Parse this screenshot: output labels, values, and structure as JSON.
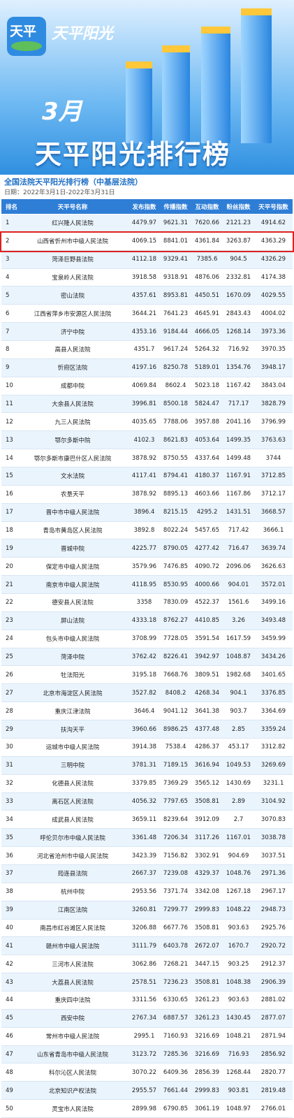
{
  "banner": {
    "logo": "天平",
    "brand": "天平阳光",
    "month": "3月",
    "title": "天平阳光排行榜"
  },
  "header": {
    "title": "全国法院天平阳光排行榜（中基层法院）",
    "date": "日期：2022年3月1日-2022年3月31日"
  },
  "table": {
    "columns": [
      "排名",
      "天平号名称",
      "发布指数",
      "传播指数",
      "互动指数",
      "粉丝指数",
      "天平号指数"
    ],
    "rows": [
      [
        1,
        "红兴隆人民法院",
        4479.97,
        9621.31,
        7620.66,
        2121.23,
        4914.62
      ],
      [
        2,
        "山西省忻州市中级人民法院",
        4069.15,
        8841.01,
        4361.84,
        3263.87,
        4363.29
      ],
      [
        3,
        "菏泽巨野县法院",
        4112.18,
        9329.41,
        7385.6,
        904.5,
        4326.29
      ],
      [
        4,
        "宝泉岭人民法院",
        3918.58,
        9318.91,
        4876.06,
        2332.81,
        4174.38
      ],
      [
        5,
        "密山法院",
        4357.61,
        8953.81,
        4450.51,
        1670.09,
        4029.55
      ],
      [
        6,
        "江西省萍乡市安源区人民法院",
        3644.21,
        7641.23,
        4645.91,
        2843.43,
        4004.02
      ],
      [
        7,
        "济宁中院",
        4353.16,
        9184.44,
        4666.05,
        1268.14,
        3973.36
      ],
      [
        8,
        "高县人民法院",
        4351.7,
        9617.24,
        5264.32,
        716.92,
        3970.35
      ],
      [
        9,
        "忻府区法院",
        4197.16,
        8250.78,
        5189.01,
        1354.76,
        3948.17
      ],
      [
        10,
        "成都中院",
        4069.84,
        8602.4,
        5023.18,
        1167.42,
        3843.04
      ],
      [
        11,
        "大余县人民法院",
        3996.81,
        8500.18,
        5824.47,
        717.17,
        3828.79
      ],
      [
        12,
        "九三人民法院",
        4035.65,
        7788.06,
        3957.88,
        2041.16,
        3796.99
      ],
      [
        13,
        "鄂尔多斯中院",
        4102.3,
        8621.83,
        4053.64,
        1499.35,
        3763.63
      ],
      [
        14,
        "鄂尔多斯市康巴什区人民法院",
        3878.92,
        8750.55,
        4337.64,
        1499.48,
        3744
      ],
      [
        15,
        "文水法院",
        4117.41,
        8794.41,
        4180.37,
        1167.91,
        3712.85
      ],
      [
        16,
        "农垦天平",
        3878.92,
        8895.13,
        4603.66,
        1167.86,
        3712.17
      ],
      [
        17,
        "晋中市中级人民法院",
        3896.4,
        8215.15,
        4295.2,
        1431.51,
        3668.57
      ],
      [
        18,
        "青岛市黄岛区人民法院",
        3892.8,
        8022.24,
        5457.65,
        717.42,
        3666.1
      ],
      [
        19,
        "晋城中院",
        4225.77,
        8790.05,
        4277.42,
        716.47,
        3639.74
      ],
      [
        20,
        "保定市中级人民法院",
        3579.96,
        7476.85,
        4090.72,
        2096.06,
        3626.63
      ],
      [
        21,
        "南京市中级人民法院",
        4118.95,
        8530.95,
        4000.66,
        904.01,
        3572.01
      ],
      [
        22,
        "德安县人民法院",
        3358,
        7830.09,
        4522.37,
        1561.6,
        3499.16
      ],
      [
        23,
        "屏山法院",
        4333.18,
        8762.27,
        4410.85,
        3.26,
        3493.48
      ],
      [
        24,
        "包头市中级人民法院",
        3708.99,
        7728.05,
        3591.54,
        1617.59,
        3459.99
      ],
      [
        25,
        "菏泽中院",
        3762.42,
        8226.41,
        3942.97,
        1048.87,
        3434.26
      ],
      [
        26,
        "牡法阳光",
        3195.18,
        7668.76,
        3809.51,
        1982.68,
        3401.65
      ],
      [
        27,
        "北京市海淀区人民法院",
        3527.82,
        8408.2,
        4268.34,
        904.1,
        3376.85
      ],
      [
        28,
        "重庆江津法院",
        3646.4,
        9041.12,
        3641.38,
        903.7,
        3364.69
      ],
      [
        29,
        "扶沟天平",
        3960.66,
        8986.25,
        4377.48,
        2.85,
        3359.24
      ],
      [
        30,
        "运城市中级人民法院",
        3914.38,
        7538.4,
        4286.37,
        453.17,
        3312.82
      ],
      [
        31,
        "三明中院",
        3781.31,
        7189.15,
        3616.94,
        1049.53,
        3269.69
      ],
      [
        32,
        "化德县人民法院",
        3379.85,
        7369.29,
        3565.12,
        1430.69,
        3231.1
      ],
      [
        33,
        "离石区人民法院",
        4056.32,
        7797.65,
        3508.81,
        2.89,
        3104.92
      ],
      [
        34,
        "成武县人民法院",
        3659.11,
        8239.64,
        3912.09,
        2.7,
        3070.83
      ],
      [
        35,
        "呼伦贝尔市中级人民法院",
        3361.48,
        7206.34,
        3117.26,
        1167.01,
        3038.78
      ],
      [
        36,
        "河北省沧州市中级人民法院",
        3423.39,
        7156.82,
        3302.91,
        904.69,
        3037.51
      ],
      [
        37,
        "筠连县法院",
        2667.37,
        7239.08,
        4329.37,
        1048.76,
        2971.36
      ],
      [
        38,
        "杭州中院",
        2953.56,
        7371.74,
        3342.08,
        1267.18,
        2967.17
      ],
      [
        39,
        "江南区法院",
        3260.81,
        7299.77,
        2999.83,
        1048.22,
        2948.73
      ],
      [
        40,
        "南昌市红谷滩区人民法院",
        3206.88,
        6677.76,
        3508.81,
        903.63,
        2925.76
      ],
      [
        41,
        "赣州市中级人民法院",
        3111.79,
        6403.78,
        2672.07,
        1670.7,
        2920.72
      ],
      [
        42,
        "三河市人民法院",
        3062.86,
        7268.21,
        3447.15,
        903.25,
        2912.37
      ],
      [
        43,
        "大荔县人民法院",
        2578.51,
        7236.23,
        3508.81,
        1048.38,
        2906.39
      ],
      [
        44,
        "重庆四中法院",
        3311.56,
        6330.65,
        3261.23,
        903.63,
        2881.02
      ],
      [
        45,
        "西安中院",
        2767.34,
        6887.57,
        3261.23,
        1430.45,
        2877.07
      ],
      [
        46,
        "常州市中级人民法院",
        2995.1,
        7160.93,
        3216.69,
        1048.21,
        2871.94
      ],
      [
        47,
        "山东省青岛市中级人民法院",
        3123.72,
        7285.36,
        3216.69,
        716.93,
        2856.92
      ],
      [
        48,
        "科尔沁区人民法院",
        3070.22,
        6409.36,
        2856.39,
        1268.44,
        2820.77
      ],
      [
        49,
        "北京知识产权法院",
        2955.57,
        7661.44,
        2999.83,
        903.81,
        2819.48
      ],
      [
        50,
        "灵宝市人民法院",
        2899.98,
        6790.85,
        3061.19,
        1048.97,
        2766.01
      ]
    ]
  }
}
